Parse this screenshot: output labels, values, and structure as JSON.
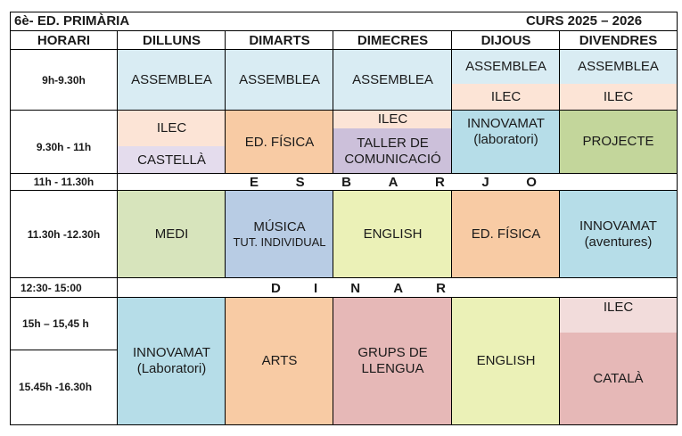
{
  "header": {
    "title": "6è- ED. PRIMÀRIA",
    "course": "CURS 2025 – 2026"
  },
  "columns": [
    "HORARI",
    "DILLUNS",
    "DIMARTS",
    "DIMECRES",
    "DIJOUS",
    "DIVENDRES"
  ],
  "times": {
    "t1": "9h-9.30h",
    "t2": "9.30h - 11h",
    "t3": "11h - 11.30h",
    "t4": "11.30h -12.30h",
    "t5": "12:30- 15:00",
    "t6": "15h – 15,45 h",
    "t7": "15.45h -16.30h"
  },
  "breaks": {
    "esbarjo": [
      "E",
      "S",
      "B",
      "A",
      "R",
      "J",
      "O"
    ],
    "dinar": [
      "D",
      "I",
      "N",
      "A",
      "R"
    ]
  },
  "cells": {
    "mon_1": "ASSEMBLEA",
    "tue_1": "ASSEMBLEA",
    "wed_1": "ASSEMBLEA",
    "thu_1a": "ASSEMBLEA",
    "thu_1b": "ILEC",
    "fri_1a": "ASSEMBLEA",
    "fri_1b": "ILEC",
    "mon_2a": "ILEC",
    "mon_2b": "CASTELLÀ",
    "tue_2": "ED. FÍSICA",
    "wed_2a": "ILEC",
    "wed_2b_l1": "TALLER DE",
    "wed_2b_l2": "COMUNICACIÓ",
    "thu_2_l1": "INNOVAMAT",
    "thu_2_l2": "(laboratori)",
    "fri_2": "PROJECTE",
    "mon_4": "MEDI",
    "tue_4_l1": "MÚSICA",
    "tue_4_l2": "TUT. INDIVIDUAL",
    "wed_4": "ENGLISH",
    "thu_4": "ED. FÍSICA",
    "fri_4_l1": "INNOVAMAT",
    "fri_4_l2": "(aventures)",
    "mon_6_l1": "INNOVAMAT",
    "mon_6_l2": "(Laboratori)",
    "tue_6": "ARTS",
    "wed_6_l1": "GRUPS DE",
    "wed_6_l2": "LLENGUA",
    "thu_6": "ENGLISH",
    "fri_6a": "ILEC",
    "fri_6b": "CATALÀ"
  },
  "colors": {
    "blue": "#d9ecf3",
    "peach": "#fce4d6",
    "orange": "#f8cba4",
    "lavender": "#e4dced",
    "purple": "#ccc0da",
    "teal": "#b6dde8",
    "green": "#c3d69b",
    "sage": "#d7e4bc",
    "periwinkle": "#b8cce4",
    "yellow": "#ebf1b7",
    "pink": "#e6b8b7",
    "pinklight": "#f2dcdb"
  }
}
